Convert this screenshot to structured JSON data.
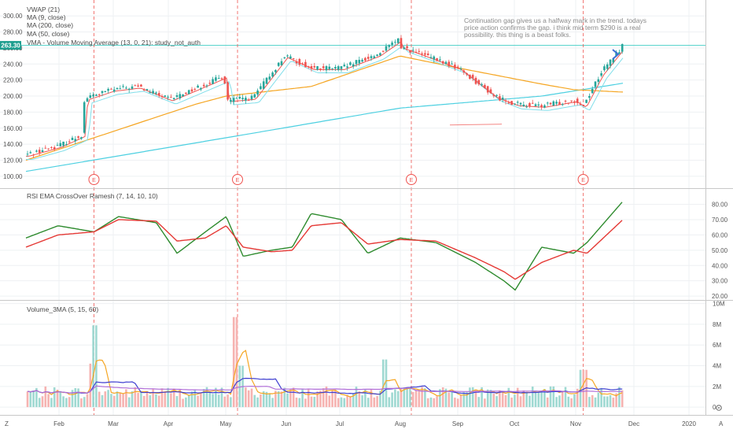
{
  "main_pane": {
    "legend": [
      {
        "label": "VWAP (21)"
      },
      {
        "label": "MA (9, close)"
      },
      {
        "label": "MA (200, close)"
      },
      {
        "label": "MA (50, close)"
      },
      {
        "label": "VMA - Volume Moving Average (13, 0, 21): study_not_auth"
      }
    ],
    "price_tag": "263.30",
    "annotation": [
      "Continuation gap gives us a halfway mark in the trend.  todays",
      "price action confirms the gap.  i think mid term $290 is a real",
      "possibility.  this thing is a beast folks."
    ],
    "earnings_marker": "E",
    "colors": {
      "up": "#26a69a",
      "down": "#ef5350",
      "ma9": "#ef5350",
      "ma50": "#f5a623",
      "ma200": "#4dd0e1",
      "vwap": "#80deea"
    }
  },
  "rsi_pane": {
    "title": "RSI EMA CrossOver Ramesh (7, 14, 10, 10)",
    "colors": {
      "fast": "#2e8b2e",
      "slow": "#e53935"
    }
  },
  "volume_pane": {
    "title": "Volume_3MA (5, 15, 60)",
    "colors": {
      "ma_fast": "#f5a623",
      "ma_mid": "#3f3fd0",
      "ma_slow": "#b06ed8"
    }
  },
  "bottom_bar": {
    "zoom_label": "Z",
    "auto_label": "A",
    "gear_icon": "gear-icon"
  },
  "chart_data": [
    {
      "type": "candlestick",
      "title": "",
      "x_tick_labels": [
        "Feb",
        "Mar",
        "Apr",
        "May",
        "Jun",
        "Jul",
        "Aug",
        "Sep",
        "Oct",
        "Nov",
        "Dec",
        "2020"
      ],
      "y_tick_labels": [
        "100.00",
        "120.00",
        "140.00",
        "160.00",
        "180.00",
        "200.00",
        "220.00",
        "240.00",
        "260.00",
        "280.00",
        "300.00"
      ],
      "ylim": [
        92,
        312
      ],
      "last_price": 263.3,
      "close_path": {
        "dates": [
          "2019-01-15",
          "2019-02-01",
          "2019-02-14",
          "2019-02-15",
          "2019-03-01",
          "2019-03-15",
          "2019-04-01",
          "2019-04-15",
          "2019-04-30",
          "2019-05-01",
          "2019-05-15",
          "2019-06-01",
          "2019-06-15",
          "2019-07-01",
          "2019-07-20",
          "2019-07-31",
          "2019-08-01",
          "2019-08-15",
          "2019-09-01",
          "2019-09-20",
          "2019-10-01",
          "2019-10-15",
          "2019-11-01",
          "2019-11-06",
          "2019-11-15",
          "2019-11-27"
        ],
        "values": [
          127,
          138,
          152,
          197,
          208,
          212,
          196,
          210,
          225,
          195,
          198,
          250,
          235,
          235,
          252,
          270,
          262,
          250,
          235,
          200,
          190,
          188,
          195,
          188,
          228,
          263.3
        ]
      },
      "ma200": {
        "dates": [
          "2019-01-15",
          "2019-05-01",
          "2019-08-01",
          "2019-10-15",
          "2019-11-27"
        ],
        "values": [
          106,
          148,
          185,
          200,
          216
        ]
      },
      "ma50": {
        "dates": [
          "2019-01-15",
          "2019-03-01",
          "2019-04-15",
          "2019-05-01",
          "2019-06-15",
          "2019-08-01",
          "2019-09-01",
          "2019-10-15",
          "2019-11-01",
          "2019-11-27"
        ],
        "values": [
          120,
          155,
          190,
          200,
          212,
          250,
          235,
          215,
          208,
          205
        ]
      },
      "earnings_dates": [
        "2019-02-20",
        "2019-05-07",
        "2019-08-07",
        "2019-11-06"
      ]
    },
    {
      "type": "line",
      "title": "RSI EMA CrossOver Ramesh (7, 14, 10, 10)",
      "y_tick_labels": [
        "20.00",
        "30.00",
        "40.00",
        "50.00",
        "60.00",
        "70.00",
        "80.00"
      ],
      "ylim": [
        18,
        88
      ],
      "series": [
        {
          "name": "fast",
          "dates": [
            "2019-01-15",
            "2019-02-01",
            "2019-02-20",
            "2019-03-05",
            "2019-03-25",
            "2019-04-05",
            "2019-04-20",
            "2019-05-01",
            "2019-05-10",
            "2019-05-25",
            "2019-06-05",
            "2019-06-15",
            "2019-07-01",
            "2019-07-15",
            "2019-08-01",
            "2019-08-20",
            "2019-09-10",
            "2019-09-25",
            "2019-10-01",
            "2019-10-15",
            "2019-11-01",
            "2019-11-08",
            "2019-11-27"
          ],
          "values": [
            58,
            66,
            62,
            72,
            68,
            48,
            62,
            72,
            46,
            50,
            52,
            74,
            70,
            48,
            58,
            55,
            42,
            30,
            24,
            52,
            48,
            55,
            82
          ]
        },
        {
          "name": "slow",
          "dates": [
            "2019-01-15",
            "2019-02-01",
            "2019-02-20",
            "2019-03-05",
            "2019-03-25",
            "2019-04-05",
            "2019-04-20",
            "2019-05-01",
            "2019-05-10",
            "2019-05-25",
            "2019-06-05",
            "2019-06-15",
            "2019-07-01",
            "2019-07-15",
            "2019-08-01",
            "2019-08-20",
            "2019-09-10",
            "2019-09-25",
            "2019-10-01",
            "2019-10-15",
            "2019-11-01",
            "2019-11-08",
            "2019-11-27"
          ],
          "values": [
            52,
            60,
            62,
            70,
            69,
            56,
            58,
            66,
            52,
            49,
            50,
            66,
            68,
            54,
            57,
            56,
            45,
            36,
            31,
            42,
            50,
            48,
            70
          ]
        }
      ]
    },
    {
      "type": "bar",
      "title": "Volume_3MA (5, 15, 60)",
      "y_tick_labels": [
        "0",
        "2M",
        "4M",
        "6M",
        "8M",
        "10M"
      ],
      "ylim": [
        -0.6,
        10.2
      ],
      "spikes": [
        {
          "date": "2019-02-19",
          "value_m": 4.2
        },
        {
          "date": "2019-02-20",
          "value_m": 7.9
        },
        {
          "date": "2019-05-07",
          "value_m": 8.7
        },
        {
          "date": "2019-05-08",
          "value_m": 4.0
        },
        {
          "date": "2019-07-24",
          "value_m": 4.6
        },
        {
          "date": "2019-11-06",
          "value_m": 3.6
        }
      ]
    }
  ]
}
